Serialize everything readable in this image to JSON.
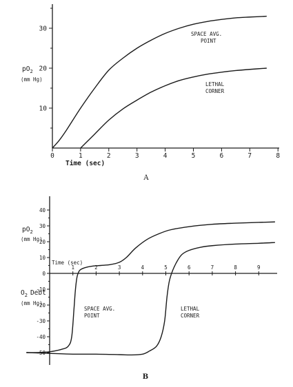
{
  "chart_data": [
    {
      "panel": "A",
      "type": "line",
      "xlabel": "Time (sec)",
      "ylabel": [
        "pO",
        "2",
        "(mm Hg)"
      ],
      "xlim": [
        0,
        8
      ],
      "ylim": [
        0,
        36
      ],
      "xticks": [
        0,
        1,
        2,
        3,
        4,
        5,
        6,
        7,
        8
      ],
      "yticks": [
        10,
        20,
        30
      ],
      "ytick_labels": [
        "10",
        "20",
        "30"
      ],
      "series": [
        {
          "labels": [
            "SPACE AVG.",
            "POINT"
          ],
          "x": [
            0,
            0.25,
            0.5,
            1,
            1.5,
            2,
            2.5,
            3,
            3.5,
            4,
            4.5,
            5,
            5.5,
            6,
            6.5,
            7,
            7.6
          ],
          "y": [
            0,
            2,
            4.5,
            10,
            15,
            19.5,
            22.5,
            25,
            27,
            28.7,
            30,
            31,
            31.7,
            32.2,
            32.6,
            32.8,
            33
          ]
        },
        {
          "labels": [
            "LETHAL",
            "CORNER"
          ],
          "x": [
            1,
            1.5,
            2,
            2.5,
            3,
            3.5,
            4,
            4.5,
            5,
            5.5,
            6,
            6.5,
            7,
            7.6
          ],
          "y": [
            0,
            3.5,
            7,
            9.8,
            12,
            14,
            15.6,
            16.9,
            17.8,
            18.5,
            19,
            19.4,
            19.7,
            20
          ]
        }
      ]
    },
    {
      "panel": "B",
      "type": "line",
      "xlabel": "Time (sec)",
      "ylabel_top": [
        "pO",
        "2",
        "(mm Hg)"
      ],
      "ylabel_bottom": [
        "O",
        "2",
        "Debt",
        "(mm Hg)"
      ],
      "xlim": [
        0,
        9.5
      ],
      "ylim": [
        -52,
        45
      ],
      "xticks": [
        1,
        2,
        3,
        4,
        5,
        6,
        7,
        8,
        9
      ],
      "yticks": [
        -50,
        -40,
        -30,
        -20,
        -10,
        0,
        10,
        20,
        30,
        40
      ],
      "ytick_labels": [
        "-50",
        "-40",
        "-30",
        "-20",
        "-10",
        "0",
        "10",
        "20",
        "30",
        "40"
      ],
      "series": [
        {
          "labels": [
            "SPACE AVG.",
            "POINT"
          ],
          "x": [
            -1,
            -0.5,
            0,
            0.5,
            0.8,
            0.95,
            1.05,
            1.1,
            1.15,
            1.2,
            1.3,
            1.5,
            1.8,
            2.2,
            2.6,
            3,
            3.3,
            3.7,
            4.2,
            4.7,
            5.2,
            6,
            7,
            8,
            9,
            9.7
          ],
          "y": [
            -50,
            -50,
            -49.5,
            -48,
            -46,
            -40,
            -22,
            -12,
            -5,
            -1,
            2,
            3.5,
            4.5,
            5,
            5.5,
            7,
            10,
            16,
            21.5,
            25,
            27.5,
            29.5,
            31,
            31.7,
            32.2,
            32.5
          ]
        },
        {
          "labels": [
            "LETHAL",
            "CORNER"
          ],
          "x": [
            -1,
            0,
            1,
            2,
            3,
            3.5,
            4,
            4.3,
            4.6,
            4.8,
            4.95,
            5.05,
            5.15,
            5.3,
            5.5,
            5.7,
            6,
            6.5,
            7,
            8,
            9,
            9.7
          ],
          "y": [
            -50,
            -50.5,
            -51,
            -51,
            -51.3,
            -51.5,
            -51,
            -49,
            -46,
            -40,
            -30,
            -15,
            -5,
            2,
            8,
            12,
            14.5,
            16.5,
            17.5,
            18.5,
            19,
            19.5
          ]
        }
      ]
    }
  ],
  "panel_labels": [
    "A",
    "B"
  ]
}
